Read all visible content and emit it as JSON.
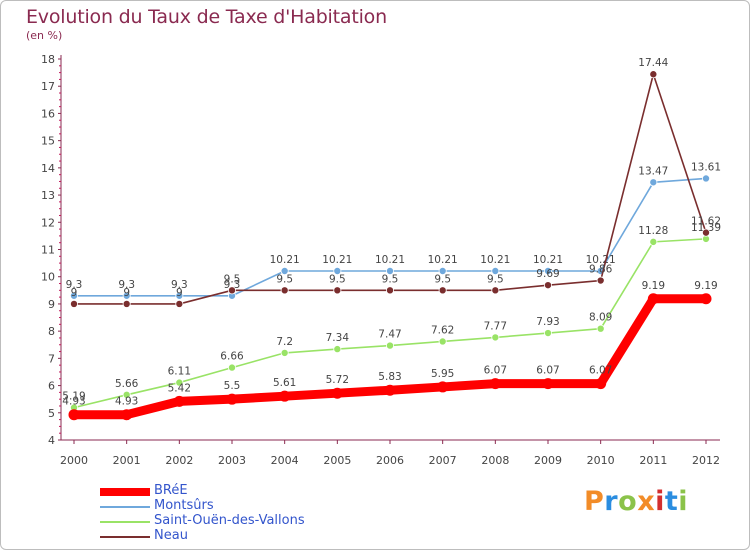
{
  "header": {
    "title": "Evolution du Taux de Taxe d'Habitation",
    "unit": "(en %)"
  },
  "logo": {
    "letters": [
      "P",
      "r",
      "o",
      "x",
      "i",
      "t",
      "i"
    ],
    "colors": [
      "#f28c28",
      "#2a8de0",
      "#8bc34a",
      "#f28c28",
      "#d32f2f",
      "#2a8de0",
      "#8bc34a"
    ]
  },
  "chart_data": {
    "type": "line",
    "title": "Evolution du Taux de Taxe d'Habitation",
    "ylabel": "(en %)",
    "xlabel": "",
    "categories": [
      "2000",
      "2001",
      "2002",
      "2003",
      "2004",
      "2005",
      "2006",
      "2007",
      "2008",
      "2009",
      "2010",
      "2011",
      "2012"
    ],
    "ylim": [
      4,
      18
    ],
    "yticks": [
      4,
      5,
      6,
      7,
      8,
      9,
      10,
      11,
      12,
      13,
      14,
      15,
      16,
      17,
      18
    ],
    "grid": false,
    "legend_position": "bottom-left",
    "series": [
      {
        "name": "BRéE",
        "color": "#ff0000",
        "values": [
          4.93,
          4.93,
          5.42,
          5.5,
          5.61,
          5.72,
          5.83,
          5.95,
          6.07,
          6.07,
          6.07,
          9.19,
          9.19
        ],
        "labels": [
          "4.93",
          "4.93",
          "5.42",
          "5.5",
          "5.61",
          "5.72",
          "5.83",
          "5.95",
          "6.07",
          "6.07",
          "6.07",
          "9.19",
          "9.19"
        ]
      },
      {
        "name": "Montsûrs",
        "color": "#6fa8dc",
        "values": [
          9.3,
          9.3,
          9.3,
          9.3,
          10.21,
          10.21,
          10.21,
          10.21,
          10.21,
          10.21,
          10.21,
          13.47,
          13.61
        ],
        "labels": [
          "9.3",
          "9.3",
          "9.3",
          "9.3",
          "10.21",
          "10.21",
          "10.21",
          "10.21",
          "10.21",
          "10.21",
          "10.21",
          "13.47",
          "13.61"
        ]
      },
      {
        "name": "Saint-Ouën-des-Vallons",
        "color": "#99e366",
        "values": [
          5.19,
          5.66,
          6.11,
          6.66,
          7.2,
          7.34,
          7.47,
          7.62,
          7.77,
          7.93,
          8.09,
          11.28,
          11.39
        ],
        "labels": [
          "5.19",
          "5.66",
          "6.11",
          "6.66",
          "7.2",
          "7.34",
          "7.47",
          "7.62",
          "7.77",
          "7.93",
          "8.09",
          "11.28",
          "11.39"
        ]
      },
      {
        "name": "Neau",
        "color": "#7a2e2e",
        "values": [
          9.0,
          9.0,
          9.0,
          9.5,
          9.5,
          9.5,
          9.5,
          9.5,
          9.5,
          9.69,
          9.86,
          17.44,
          11.62
        ],
        "labels": [
          "9",
          "9",
          "9",
          "9.5",
          "9.5",
          "9.5",
          "9.5",
          "9.5",
          "9.5",
          "9.69",
          "9.86",
          "17.44",
          "11.62"
        ]
      }
    ]
  }
}
